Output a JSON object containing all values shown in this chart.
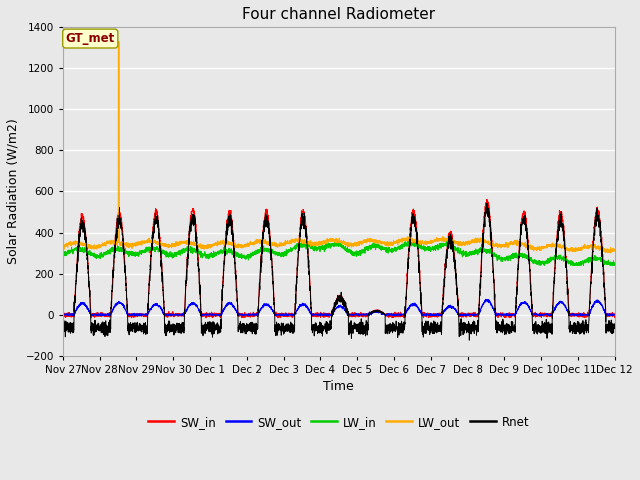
{
  "title": "Four channel Radiometer",
  "xlabel": "Time",
  "ylabel": "Solar Radiation (W/m2)",
  "ylim": [
    -200,
    1400
  ],
  "yticks": [
    -200,
    0,
    200,
    400,
    600,
    800,
    1000,
    1200,
    1400
  ],
  "fig_bg_color": "#e8e8e8",
  "plot_bg_color": "#e8e8e8",
  "legend_labels": [
    "SW_in",
    "SW_out",
    "LW_in",
    "LW_out",
    "Rnet"
  ],
  "legend_colors": [
    "#ff0000",
    "#0000ff",
    "#00cc00",
    "#ffaa00",
    "#000000"
  ],
  "annotation_text": "GT_met",
  "annotation_color": "#8b0000",
  "annotation_bg": "#ffffcc",
  "annotation_edge": "#999900",
  "x_tick_labels": [
    "Nov 27",
    "Nov 28",
    "Nov 29",
    "Nov 30",
    "Dec 1",
    "Dec 2",
    "Dec 3",
    "Dec 4",
    "Dec 5",
    "Dec 6",
    "Dec 7",
    "Dec 8",
    "Dec 9",
    "Dec 10",
    "Dec 11",
    "Dec 12"
  ],
  "num_days": 15,
  "ppd": 288,
  "spike_day": 1,
  "spike_value": 1330,
  "grid_color": "#ffffff",
  "line_width": 0.7
}
